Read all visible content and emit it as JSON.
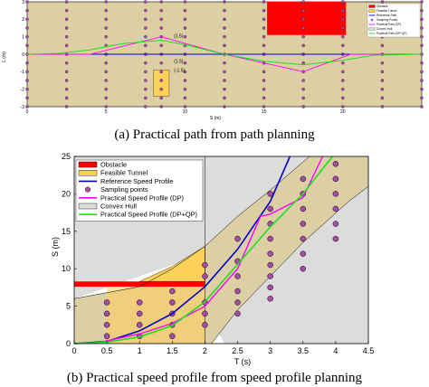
{
  "captions": {
    "a": "(a) Practical path from path planning",
    "b": "(b) Practical speed profile from speed profile planning"
  },
  "colors": {
    "obstacle": "#ff0000",
    "tunnel": "#fdd05a",
    "reference": "#0000cc",
    "sampling": "#a64ca6",
    "dp": "#ff00ff",
    "dpqp": "#22dd22",
    "hull": "#dcdcdc",
    "band": "#ddcfa4"
  },
  "chart_data": [
    {
      "type": "line",
      "title": "",
      "xlabel": "S (m)",
      "ylabel": "L (m)",
      "xlim": [
        0,
        25
      ],
      "ylim": [
        -3,
        3
      ],
      "xticks": [
        "0",
        "5",
        "10",
        "15",
        "20"
      ],
      "yticks": [
        "3",
        "2",
        "1",
        "0",
        "-1",
        "-2",
        "-3"
      ],
      "legend_position": "top-right",
      "legend": [
        "Obstacle",
        "Feasible Tunnel",
        "Reference Path",
        "Sampling Points",
        "Practical Path (DP)",
        "Convex Hull",
        "Practical Path (DP+QP)"
      ],
      "annotations": [
        "(1.5)",
        "(1.5)",
        "(-1.5)"
      ],
      "obstacles": [
        {
          "s": [
            15.2,
            20.2
          ],
          "l": [
            1.1,
            3.0
          ]
        },
        {
          "s": [
            8.2,
            8.8
          ],
          "l": [
            -1.2,
            -3.0
          ]
        }
      ],
      "sampling_s": [
        0,
        2.5,
        5,
        7.5,
        8.5,
        10,
        12.5,
        15,
        17.5,
        20,
        22.5,
        25
      ],
      "sampling_l": [
        3,
        2.5,
        2,
        1.5,
        1,
        0.5,
        0,
        -0.5,
        -1,
        -1.5,
        -2,
        -2.5,
        -3
      ],
      "series": [
        {
          "name": "Reference Path",
          "x": [
            0,
            25
          ],
          "y": [
            0,
            0
          ]
        },
        {
          "name": "Practical Path (DP)",
          "x": [
            0,
            4,
            8.5,
            12.5,
            17.5,
            20.5,
            25
          ],
          "y": [
            0,
            0,
            1.0,
            0,
            -1.0,
            0,
            0
          ]
        },
        {
          "name": "Practical Path (DP+QP)",
          "x": [
            0,
            2,
            4,
            6,
            8.5,
            10,
            12.5,
            15,
            17.5,
            20,
            22,
            25
          ],
          "y": [
            0,
            0.05,
            0.25,
            0.6,
            0.8,
            0.55,
            0,
            -0.4,
            -0.6,
            -0.35,
            -0.05,
            0
          ]
        }
      ]
    },
    {
      "type": "line",
      "title": "",
      "xlabel": "T (s)",
      "ylabel": "S (m)",
      "xlim": [
        0,
        4.5
      ],
      "ylim": [
        0,
        25
      ],
      "xticks": [
        "0",
        "0.5",
        "1",
        "1.5",
        "2",
        "2.5",
        "3",
        "3.5",
        "4",
        "4.5"
      ],
      "yticks": [
        "0",
        "5",
        "10",
        "15",
        "20",
        "25"
      ],
      "legend_position": "top-left",
      "legend": [
        "Obstacle",
        "Feasible Tunnel",
        "Reference Speed Profile",
        "Sampling points",
        "Practical Speed Profile (DP)",
        "Convex Hull",
        "Practical Speed Profile (DP+QP)"
      ],
      "obstacle": {
        "t": [
          0,
          2.0
        ],
        "s": [
          7.6,
          8.3
        ]
      },
      "convex_hull": {
        "t": [
          2.0,
          4.5
        ],
        "s": [
          0,
          25
        ]
      },
      "sampling_t": [
        0.5,
        1,
        1.5,
        2,
        2.5,
        3,
        3.5,
        4
      ],
      "series": [
        {
          "name": "Reference Speed Profile",
          "x": [
            0,
            0.5,
            1,
            1.5,
            2,
            2.5,
            3,
            3.3
          ],
          "y": [
            0,
            0.3,
            1.7,
            4.0,
            7.6,
            12.6,
            19.0,
            25
          ]
        },
        {
          "name": "Practical Speed Profile (DP)",
          "x": [
            0.3,
            1,
            1.5,
            2,
            2.5,
            2.85,
            3,
            3.5,
            3.8
          ],
          "y": [
            0,
            1.3,
            2.7,
            5.0,
            10,
            17.0,
            17.3,
            19.5,
            25
          ]
        },
        {
          "name": "Practical Speed Profile (DP+QP)",
          "x": [
            0,
            0.5,
            1,
            1.5,
            2,
            2.5,
            3,
            3.5,
            3.95
          ],
          "y": [
            0,
            0.2,
            0.9,
            2.4,
            5.6,
            10.6,
            15.6,
            20.0,
            25
          ]
        }
      ]
    }
  ]
}
